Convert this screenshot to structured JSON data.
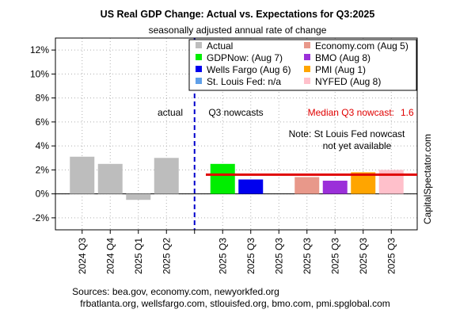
{
  "chart_data": {
    "type": "bar",
    "title": "US Real GDP Change: Actual vs. Expectations for Q3:2025",
    "subtitle": "seasonally adjusted annual rate of change",
    "ylim": [
      -3,
      13
    ],
    "yticks": [
      -2,
      0,
      2,
      4,
      6,
      8,
      10,
      12
    ],
    "ytick_labels": [
      "-2%",
      "0%",
      "2%",
      "4%",
      "6%",
      "8%",
      "10%",
      "12%"
    ],
    "grid": true,
    "bars": [
      {
        "label": "2024 Q3",
        "value": 3.1,
        "series": "Actual",
        "color": "#bdbdbd"
      },
      {
        "label": "2024 Q4",
        "value": 2.5,
        "series": "Actual",
        "color": "#bdbdbd"
      },
      {
        "label": "2025 Q1",
        "value": -0.5,
        "series": "Actual",
        "color": "#bdbdbd"
      },
      {
        "label": "2025 Q2",
        "value": 3.0,
        "series": "Actual",
        "color": "#bdbdbd"
      },
      {
        "label": "",
        "value": null,
        "series": "",
        "color": ""
      },
      {
        "label": "2025 Q3",
        "value": 2.5,
        "series": "GDPNow: (Aug 7)",
        "color": "#00ee00"
      },
      {
        "label": "2025 Q3",
        "value": 1.2,
        "series": "Wells Fargo (Aug 6)",
        "color": "#0000ee"
      },
      {
        "label": "2025 Q3",
        "value": null,
        "series": "St. Louis Fed: n/a",
        "color": "#5f9fe8"
      },
      {
        "label": "2025 Q3",
        "value": 1.4,
        "series": "Economy.com (Aug 5)",
        "color": "#e8988a"
      },
      {
        "label": "2025 Q3",
        "value": 1.1,
        "series": "BMO (Aug 8)",
        "color": "#9b30d9"
      },
      {
        "label": "2025 Q3",
        "value": 1.8,
        "series": "PMI (Aug 1)",
        "color": "#ffa500"
      },
      {
        "label": "2025 Q3",
        "value": 2.0,
        "series": "NYFED (Aug 8)",
        "color": "#ffc0cb"
      }
    ],
    "legend": [
      {
        "label": "Actual",
        "color": "#bdbdbd"
      },
      {
        "label": "GDPNow: (Aug 7)",
        "color": "#00ee00"
      },
      {
        "label": "Wells Fargo (Aug 6)",
        "color": "#0000ee"
      },
      {
        "label": "St. Louis Fed: n/a",
        "color": "#5f9fe8"
      },
      {
        "label": "Economy.com (Aug 5)",
        "color": "#e8988a"
      },
      {
        "label": "BMO (Aug 8)",
        "color": "#9b30d9"
      },
      {
        "label": "PMI (Aug 1)",
        "color": "#ffa500"
      },
      {
        "label": "NYFED (Aug 8)",
        "color": "#ffc0cb"
      }
    ],
    "median_line": {
      "value": 1.6,
      "color": "#e00000"
    },
    "annotations": {
      "actual": "actual",
      "nowcasts": "Q3 nowcasts",
      "median_label": "Median Q3 nowcast:",
      "median_value": "1.6",
      "note_line1": "Note: St Louis Fed nowcast",
      "note_line2": "not yet available"
    },
    "watermark": "CapitalSpectator.com",
    "sources_line1": "Sources: bea.gov, economy.com, newyorkfed.org",
    "sources_line2": "frbatlanta.org, wellsfargo.com, stlouisfed.org, bmo.com, pmi.spglobal.com"
  }
}
